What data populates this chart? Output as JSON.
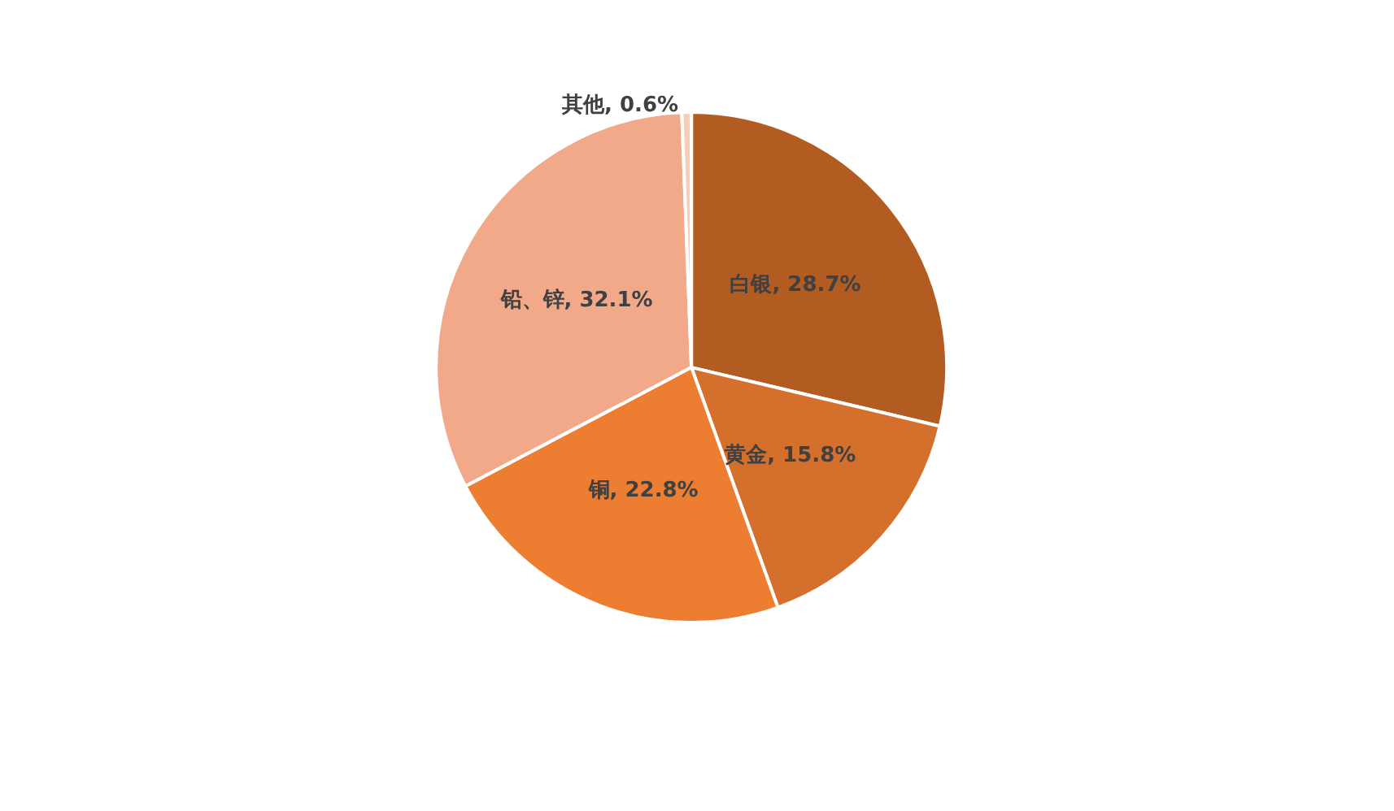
{
  "chart_data": {
    "type": "pie",
    "categories": [
      "白银",
      "黄金",
      "铜",
      "铅、锌",
      "其他"
    ],
    "values": [
      28.7,
      15.8,
      22.8,
      32.1,
      0.6
    ],
    "value_labels": [
      "28.7%",
      "15.8%",
      "22.8%",
      "32.1%",
      "0.6%"
    ],
    "colors": [
      "#b35c22",
      "#d4702c",
      "#ed7d31",
      "#f1a98a",
      "#f6cdb5"
    ]
  }
}
